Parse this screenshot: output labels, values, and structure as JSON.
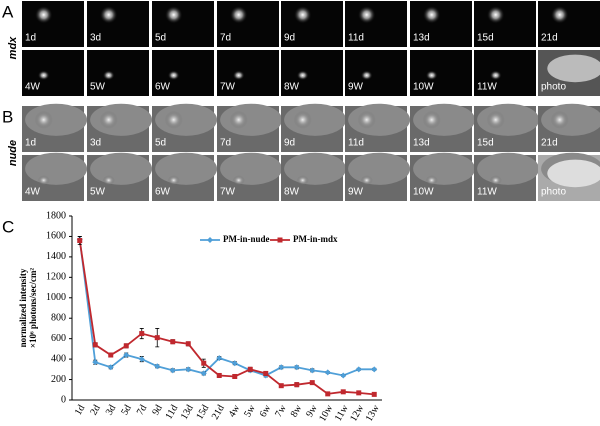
{
  "panels": [
    {
      "label": "A",
      "row_label": "mdx",
      "rows": [
        [
          "1d",
          "3d",
          "5d",
          "7d",
          "9d",
          "11d",
          "13d",
          "15d",
          "21d"
        ],
        [
          "4W",
          "5W",
          "6W",
          "7W",
          "8W",
          "9W",
          "10W",
          "11W",
          "photo"
        ]
      ]
    },
    {
      "label": "B",
      "row_label": "nude",
      "rows": [
        [
          "1d",
          "3d",
          "5d",
          "7d",
          "9d",
          "11d",
          "13d",
          "15d",
          "21d"
        ],
        [
          "4W",
          "5W",
          "6W",
          "7W",
          "8W",
          "9W",
          "10W",
          "11W",
          "photo"
        ]
      ]
    }
  ],
  "chart_label": "C",
  "chart_data": {
    "type": "line",
    "y_label": [
      "normalized intensity",
      "×10⁶ photons/sec/cm²"
    ],
    "categories": [
      "1d",
      "2d",
      "3d",
      "5d",
      "7d",
      "9d",
      "11d",
      "13d",
      "15d",
      "21d",
      "4w",
      "5w",
      "6w",
      "7w",
      "8w",
      "9w",
      "10w",
      "11w",
      "12w",
      "13w"
    ],
    "ylim": [
      0,
      1800
    ],
    "yticks": [
      0,
      200,
      400,
      600,
      800,
      1000,
      1200,
      1400,
      1600,
      1800
    ],
    "series": [
      {
        "name": "PM-in-nude",
        "color": "#4f9fd8",
        "marker": "diamond",
        "values": [
          1570,
          370,
          320,
          440,
          400,
          330,
          290,
          300,
          260,
          410,
          360,
          290,
          240,
          320,
          320,
          290,
          270,
          240,
          300,
          300
        ],
        "errors": [
          30,
          20,
          15,
          20,
          25,
          15,
          15,
          15,
          15,
          15,
          15,
          15,
          15,
          15,
          15,
          15,
          10,
          10,
          10,
          10
        ]
      },
      {
        "name": "PM-in-mdx",
        "color": "#c0282e",
        "marker": "square",
        "values": [
          1560,
          540,
          440,
          530,
          650,
          610,
          570,
          550,
          360,
          240,
          230,
          300,
          260,
          140,
          150,
          170,
          60,
          80,
          70,
          55
        ],
        "errors": [
          40,
          20,
          20,
          20,
          50,
          90,
          20,
          20,
          40,
          20,
          15,
          20,
          20,
          10,
          20,
          10,
          10,
          10,
          10,
          10
        ]
      }
    ]
  }
}
